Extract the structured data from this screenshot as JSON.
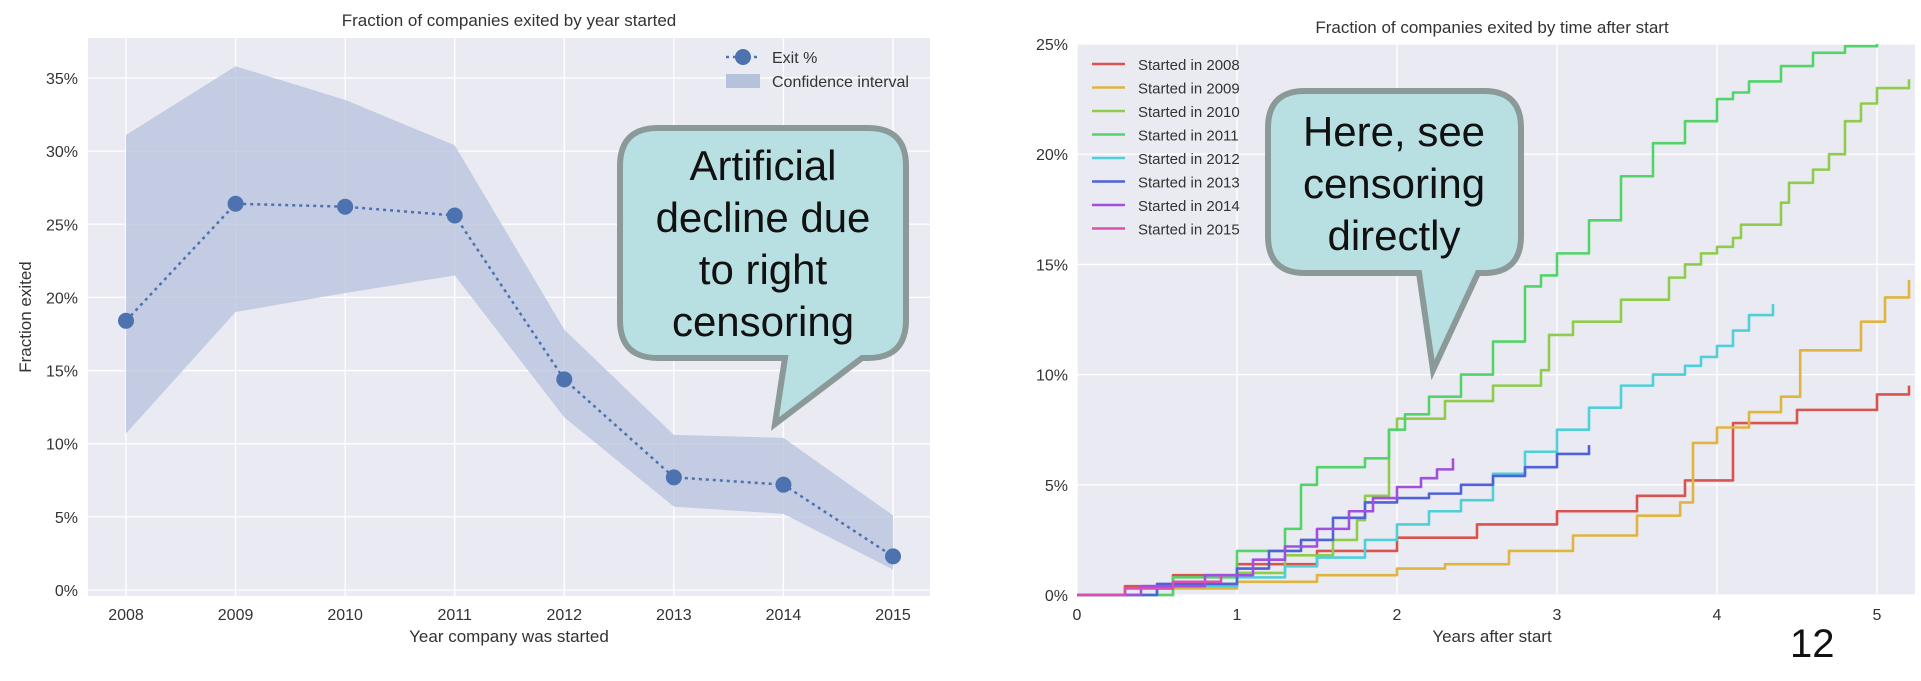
{
  "page_number": "12",
  "chart_data": [
    {
      "type": "line",
      "title": "Fraction of companies exited by year started",
      "xlabel": "Year company was started",
      "ylabel": "Fraction exited",
      "categories": [
        "2008",
        "2009",
        "2010",
        "2011",
        "2012",
        "2013",
        "2014",
        "2015"
      ],
      "ylim": [
        0,
        0.37
      ],
      "y_ticks": [
        "0%",
        "5%",
        "10%",
        "15%",
        "20%",
        "25%",
        "30%",
        "35%"
      ],
      "grid": true,
      "legend_position": "top-right",
      "series": [
        {
          "name": "Exit %",
          "values": [
            0.184,
            0.264,
            0.262,
            0.256,
            0.144,
            0.077,
            0.072,
            0.023
          ]
        }
      ],
      "confidence_interval": {
        "name": "Confidence interval",
        "lower": [
          0.107,
          0.19,
          0.203,
          0.215,
          0.118,
          0.057,
          0.052,
          0.014
        ],
        "upper": [
          0.311,
          0.358,
          0.335,
          0.304,
          0.178,
          0.106,
          0.104,
          0.051
        ]
      },
      "annotation": {
        "lines": [
          "Artificial",
          "decline due",
          "to right",
          "censoring"
        ]
      },
      "colors": {
        "line": "#4c72b0",
        "band": "#b5c2dc",
        "background": "#eaeaf2",
        "callout_fill": "#b8e0e3",
        "callout_border": "#8b9a98"
      }
    },
    {
      "type": "line",
      "title": "Fraction of companies exited by time after start",
      "xlabel": "Years after start",
      "ylabel": "",
      "xlim": [
        0,
        5.2
      ],
      "ylim": [
        0,
        0.25
      ],
      "x_ticks": [
        "0",
        "1",
        "2",
        "3",
        "4",
        "5"
      ],
      "y_ticks": [
        "0%",
        "5%",
        "10%",
        "15%",
        "20%",
        "25%"
      ],
      "grid": true,
      "legend_position": "top-left",
      "series": [
        {
          "name": "Started in 2008",
          "color": "#d9534f",
          "x": [
            0,
            0.3,
            0.6,
            1.0,
            1.5,
            2.0,
            2.5,
            3.0,
            3.5,
            3.8,
            4.1,
            4.5,
            5.0,
            5.2
          ],
          "y": [
            0,
            0.004,
            0.009,
            0.014,
            0.02,
            0.026,
            0.032,
            0.038,
            0.045,
            0.052,
            0.078,
            0.084,
            0.091,
            0.095
          ]
        },
        {
          "name": "Started in 2009",
          "color": "#e0b53f",
          "x": [
            0,
            0.5,
            1.0,
            1.5,
            2.0,
            2.3,
            2.7,
            3.1,
            3.5,
            3.77,
            3.85,
            3.85,
            4.0,
            4.2,
            4.4,
            4.52,
            4.52,
            4.9,
            5.05,
            5.2
          ],
          "y": [
            0,
            0.003,
            0.006,
            0.009,
            0.012,
            0.014,
            0.02,
            0.027,
            0.036,
            0.042,
            0.055,
            0.069,
            0.076,
            0.083,
            0.09,
            0.097,
            0.111,
            0.124,
            0.135,
            0.143
          ]
        },
        {
          "name": "Started in 2010",
          "color": "#8fcc4c",
          "x": [
            0,
            0.6,
            1.0,
            1.3,
            1.6,
            1.75,
            1.8,
            1.95,
            2.0,
            2.3,
            2.6,
            2.9,
            2.95,
            3.1,
            3.4,
            3.7,
            3.8,
            3.9,
            4.0,
            4.1,
            4.15,
            4.4,
            4.45,
            4.6,
            4.7,
            4.8,
            4.9,
            5.0,
            5.2
          ],
          "y": [
            0,
            0.005,
            0.01,
            0.018,
            0.025,
            0.034,
            0.045,
            0.075,
            0.08,
            0.088,
            0.095,
            0.102,
            0.118,
            0.124,
            0.134,
            0.144,
            0.15,
            0.155,
            0.158,
            0.162,
            0.168,
            0.178,
            0.187,
            0.193,
            0.2,
            0.215,
            0.223,
            0.23,
            0.234
          ]
        },
        {
          "name": "Started in 2011",
          "color": "#53d46a",
          "x": [
            0,
            0.6,
            1.0,
            1.3,
            1.4,
            1.5,
            1.8,
            1.95,
            2.05,
            2.2,
            2.4,
            2.6,
            2.8,
            2.9,
            3.0,
            3.2,
            3.4,
            3.6,
            3.8,
            4.0,
            4.1,
            4.2,
            4.4,
            4.6,
            4.8,
            5.0
          ],
          "y": [
            0,
            0.008,
            0.02,
            0.03,
            0.05,
            0.058,
            0.062,
            0.075,
            0.082,
            0.09,
            0.1,
            0.115,
            0.14,
            0.145,
            0.155,
            0.17,
            0.19,
            0.205,
            0.215,
            0.225,
            0.228,
            0.233,
            0.24,
            0.246,
            0.249,
            0.25
          ]
        },
        {
          "name": "Started in 2012",
          "color": "#4fd0d8",
          "x": [
            0,
            0.5,
            1.0,
            1.3,
            1.5,
            1.8,
            2.0,
            2.2,
            2.4,
            2.6,
            2.8,
            3.0,
            3.2,
            3.4,
            3.6,
            3.8,
            3.9,
            4.0,
            4.1,
            4.2,
            4.35
          ],
          "y": [
            0,
            0.004,
            0.008,
            0.013,
            0.017,
            0.025,
            0.032,
            0.038,
            0.043,
            0.055,
            0.065,
            0.075,
            0.085,
            0.095,
            0.1,
            0.104,
            0.108,
            0.113,
            0.12,
            0.127,
            0.132
          ]
        },
        {
          "name": "Started in 2013",
          "color": "#4d63d6",
          "x": [
            0,
            0.5,
            1.0,
            1.2,
            1.4,
            1.6,
            1.8,
            2.0,
            2.2,
            2.4,
            2.6,
            2.8,
            3.0,
            3.2
          ],
          "y": [
            0,
            0.005,
            0.012,
            0.02,
            0.025,
            0.035,
            0.042,
            0.044,
            0.046,
            0.05,
            0.054,
            0.058,
            0.064,
            0.068
          ]
        },
        {
          "name": "Started in 2014",
          "color": "#a24fe0",
          "x": [
            0,
            0.4,
            0.8,
            1.1,
            1.3,
            1.5,
            1.7,
            1.85,
            2.0,
            2.15,
            2.25,
            2.35
          ],
          "y": [
            0,
            0.004,
            0.009,
            0.016,
            0.022,
            0.03,
            0.038,
            0.044,
            0.049,
            0.053,
            0.057,
            0.062
          ]
        },
        {
          "name": "Started in 2015",
          "color": "#d94fb0",
          "x": [
            0,
            0.3,
            0.6,
            0.9
          ],
          "y": [
            0,
            0.003,
            0.006,
            0.009
          ]
        }
      ],
      "annotation": {
        "lines": [
          "Here, see",
          "censoring",
          "directly"
        ]
      },
      "colors": {
        "background": "#eaeaf2",
        "callout_fill": "#b8e0e3",
        "callout_border": "#8b9a98"
      }
    }
  ]
}
